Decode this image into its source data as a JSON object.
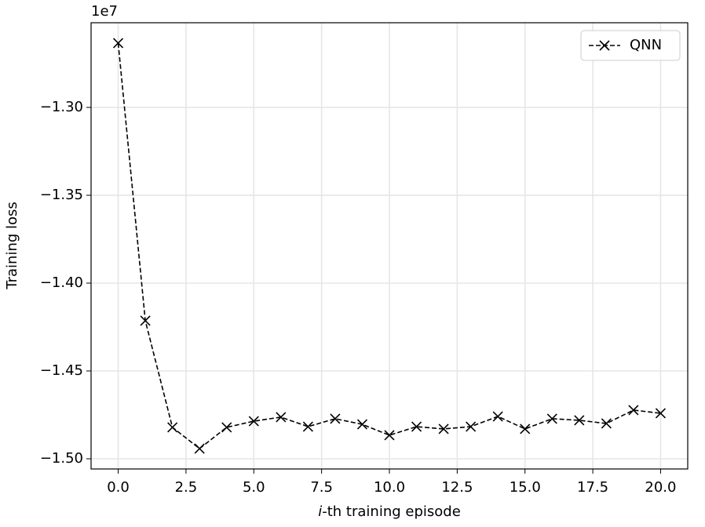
{
  "chart_data": {
    "type": "line",
    "xlabel": [
      "i",
      "-th training episode"
    ],
    "ylabel": "Training loss",
    "offset_label": "1e7",
    "x": [
      0,
      1,
      2,
      3,
      4,
      5,
      6,
      7,
      8,
      9,
      10,
      11,
      12,
      13,
      14,
      15,
      16,
      17,
      18,
      19,
      20
    ],
    "series": [
      {
        "name": "QNN",
        "color": "#000000",
        "values": [
          -1.2634,
          -1.4214,
          -1.4821,
          -1.4942,
          -1.4821,
          -1.4786,
          -1.4763,
          -1.4817,
          -1.4772,
          -1.4804,
          -1.4866,
          -1.4817,
          -1.483,
          -1.4817,
          -1.4759,
          -1.483,
          -1.4772,
          -1.4781,
          -1.4799,
          -1.4723,
          -1.4741
        ]
      }
    ],
    "xlim": [
      -1.0,
      21.0
    ],
    "ylim": [
      -1.5058,
      -1.2518
    ],
    "xticks": [
      {
        "value": 0,
        "label": "0.0"
      },
      {
        "value": 2.5,
        "label": "2.5"
      },
      {
        "value": 5,
        "label": "5.0"
      },
      {
        "value": 7.5,
        "label": "7.5"
      },
      {
        "value": 10,
        "label": "10.0"
      },
      {
        "value": 12.5,
        "label": "12.5"
      },
      {
        "value": 15,
        "label": "15.0"
      },
      {
        "value": 17.5,
        "label": "17.5"
      },
      {
        "value": 20,
        "label": "20.0"
      }
    ],
    "yticks": [
      {
        "value": -1.3,
        "label": "−1.30"
      },
      {
        "value": -1.35,
        "label": "−1.35"
      },
      {
        "value": -1.4,
        "label": "−1.40"
      },
      {
        "value": -1.45,
        "label": "−1.45"
      },
      {
        "value": -1.5,
        "label": "−1.50"
      }
    ],
    "grid": true,
    "legend": "upper right"
  }
}
